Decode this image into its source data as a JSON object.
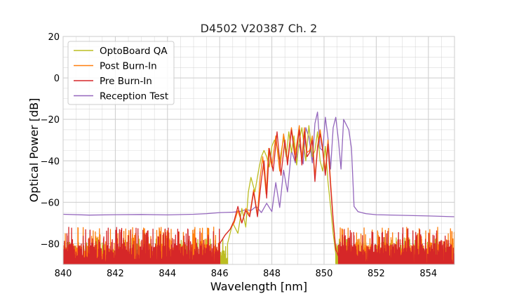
{
  "chart_data": {
    "type": "line",
    "title": "D4502 V20387 Ch. 2",
    "xlabel": "Wavelength [nm]",
    "ylabel": "Optical Power [dB]",
    "xlim": [
      840,
      855
    ],
    "ylim": [
      -90,
      20
    ],
    "xticks": [
      840,
      842,
      844,
      846,
      848,
      850,
      852,
      854
    ],
    "yticks": [
      20,
      0,
      -20,
      -40,
      -60,
      -80
    ],
    "xtick_labels": [
      "840",
      "842",
      "844",
      "846",
      "848",
      "850",
      "852",
      "854"
    ],
    "ytick_labels": [
      "20",
      "0",
      "−20",
      "−40",
      "−60",
      "−80"
    ],
    "grid": true,
    "legend_position": "top-left",
    "series": [
      {
        "name": "OptoBoard QA",
        "color": "#bcbd22",
        "noise_floor": [
          -90,
          -77
        ],
        "x": [
          846.3,
          846.5,
          846.7,
          846.85,
          847.0,
          847.1,
          847.2,
          847.35,
          847.5,
          847.6,
          847.7,
          847.8,
          847.9,
          848.0,
          848.1,
          848.2,
          848.3,
          848.45,
          848.55,
          848.65,
          848.75,
          848.85,
          848.95,
          849.05,
          849.15,
          849.3,
          849.42,
          849.55,
          849.65,
          849.75,
          849.85,
          849.95,
          850.05,
          850.15,
          850.25,
          850.35,
          850.45
        ],
        "y": [
          -80,
          -70,
          -75,
          -63,
          -72,
          -55,
          -48,
          -55,
          -44,
          -38,
          -35,
          -38,
          -43,
          -33,
          -30,
          -33,
          -40,
          -29,
          -38,
          -26,
          -36,
          -28,
          -42,
          -30,
          -24,
          -40,
          -23,
          -38,
          -35,
          -26,
          -40,
          -45,
          -33,
          -50,
          -62,
          -75,
          -85
        ]
      },
      {
        "name": "Post Burn-In",
        "color": "#ff7f0e",
        "noise_floor": [
          -90,
          -72
        ],
        "x": [
          846.0,
          846.2,
          846.4,
          846.55,
          846.7,
          846.85,
          847.0,
          847.15,
          847.3,
          847.45,
          847.55,
          847.65,
          847.78,
          847.88,
          848.0,
          848.15,
          848.3,
          848.45,
          848.6,
          848.75,
          848.9,
          849.05,
          849.15,
          849.25,
          849.35,
          849.45,
          849.55,
          849.65,
          849.75,
          849.85,
          849.95,
          850.05,
          850.15,
          850.25,
          850.35,
          850.45,
          850.55
        ],
        "y": [
          -80,
          -76,
          -73,
          -70,
          -64,
          -70,
          -63,
          -66,
          -54,
          -66,
          -48,
          -38,
          -56,
          -34,
          -43,
          -28,
          -45,
          -27,
          -40,
          -24,
          -37,
          -23,
          -39,
          -24,
          -36,
          -35,
          -28,
          -48,
          -33,
          -25,
          -34,
          -45,
          -30,
          -50,
          -68,
          -82,
          -86
        ]
      },
      {
        "name": "Pre Burn-In",
        "color": "#d62728",
        "noise_floor": [
          -90,
          -72
        ],
        "x": [
          846.0,
          846.2,
          846.4,
          846.55,
          846.7,
          846.85,
          847.0,
          847.15,
          847.3,
          847.45,
          847.6,
          847.7,
          847.8,
          847.9,
          848.05,
          848.2,
          848.35,
          848.5,
          848.6,
          848.75,
          848.9,
          849.05,
          849.15,
          849.25,
          849.35,
          849.45,
          849.55,
          849.65,
          849.75,
          849.85,
          849.95,
          850.05,
          850.15,
          850.25,
          850.35,
          850.45,
          850.55
        ],
        "y": [
          -80,
          -76,
          -73,
          -69,
          -62,
          -70,
          -64,
          -67,
          -55,
          -67,
          -49,
          -40,
          -58,
          -34,
          -45,
          -26,
          -47,
          -30,
          -42,
          -25,
          -40,
          -25,
          -42,
          -26,
          -38,
          -36,
          -30,
          -50,
          -34,
          -27,
          -35,
          -47,
          -32,
          -52,
          -69,
          -83,
          -86
        ]
      },
      {
        "name": "Reception Test",
        "color": "#9467bd",
        "x": [
          840.0,
          841.0,
          842.0,
          843.0,
          844.0,
          845.0,
          845.5,
          846.0,
          846.5,
          846.8,
          847.0,
          847.2,
          847.4,
          847.6,
          847.8,
          848.0,
          848.15,
          848.3,
          848.45,
          848.6,
          848.75,
          848.9,
          849.05,
          849.2,
          849.3,
          849.42,
          849.55,
          849.65,
          849.75,
          849.85,
          849.95,
          850.05,
          850.15,
          850.25,
          850.35,
          850.45,
          850.55,
          850.65,
          850.75,
          850.85,
          850.95,
          851.05,
          851.15,
          851.3,
          851.6,
          852.0,
          853.0,
          854.0,
          855.0
        ],
        "y": [
          -65.8,
          -66.2,
          -66.0,
          -65.9,
          -66.1,
          -65.8,
          -65.5,
          -65.0,
          -64.8,
          -64.4,
          -63.5,
          -64.0,
          -62.0,
          -65.0,
          -60.5,
          -64.5,
          -50.5,
          -62.5,
          -44.5,
          -55.0,
          -35.0,
          -41.0,
          -32.0,
          -41.5,
          -24.0,
          -28.5,
          -41.0,
          -22.0,
          -16.5,
          -34.0,
          -35.0,
          -19.0,
          -29.0,
          -44.0,
          -24.0,
          -19.0,
          -30.0,
          -44.0,
          -20.0,
          -22.5,
          -25.0,
          -34.0,
          -62.0,
          -64.5,
          -65.5,
          -66.0,
          -66.3,
          -66.6,
          -67.0
        ]
      }
    ]
  }
}
